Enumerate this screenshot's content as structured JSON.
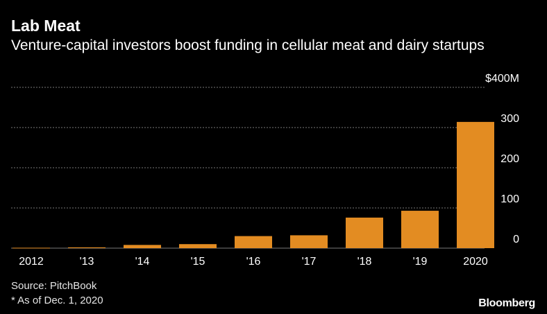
{
  "header": {
    "title": "Lab Meat",
    "subtitle": "Venture-capital investors boost funding in cellular meat and dairy startups"
  },
  "footer": {
    "source": "Source: PitchBook",
    "note": "* As of Dec. 1, 2020",
    "brand": "Bloomberg"
  },
  "colors": {
    "background": "#000000",
    "bar": "#e38c22",
    "grid": "#7a7a7a",
    "text": "#ffffff"
  },
  "chart_data": {
    "type": "bar",
    "categories": [
      "2012",
      "'13",
      "'14",
      "'15",
      "'16",
      "'17",
      "'18",
      "'19",
      "2020"
    ],
    "values": [
      1,
      2,
      8,
      10,
      30,
      32,
      76,
      93,
      314
    ],
    "title": "Lab Meat",
    "subtitle": "Venture-capital investors boost funding in cellular meat and dairy startups",
    "xlabel": "",
    "ylabel": "",
    "ylim": [
      0,
      400
    ],
    "y_ticks": [
      0,
      100,
      200,
      300,
      400
    ],
    "y_tick_labels": [
      "0",
      "100",
      "200",
      "300",
      "$400M"
    ],
    "y_axis_side": "right",
    "grid": true,
    "legend": "none"
  }
}
